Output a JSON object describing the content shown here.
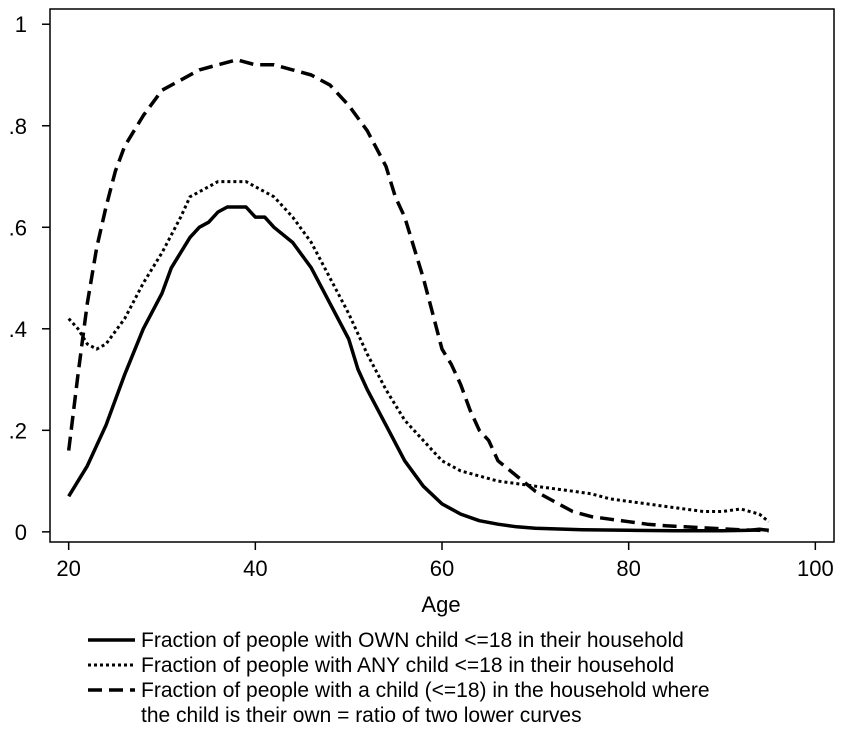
{
  "chart_data": {
    "type": "line",
    "title": "",
    "xlabel": "Age",
    "ylabel": "",
    "xlim": [
      18,
      102
    ],
    "ylim": [
      -0.02,
      1.03
    ],
    "x_ticks": [
      20,
      40,
      60,
      80,
      100
    ],
    "x_tick_labels": [
      "20",
      "40",
      "60",
      "80",
      "100"
    ],
    "y_ticks": [
      0,
      0.2,
      0.4,
      0.6,
      0.8,
      1
    ],
    "y_tick_labels": [
      "0",
      ".2",
      ".4",
      ".6",
      ".8",
      "1"
    ],
    "grid": false,
    "legend_position": "bottom",
    "series": [
      {
        "name": "Fraction of people with OWN child <=18 in their household",
        "style": "solid",
        "points": [
          [
            20,
            0.07
          ],
          [
            22,
            0.13
          ],
          [
            24,
            0.21
          ],
          [
            26,
            0.31
          ],
          [
            28,
            0.4
          ],
          [
            30,
            0.47
          ],
          [
            31,
            0.52
          ],
          [
            33,
            0.58
          ],
          [
            34,
            0.6
          ],
          [
            35,
            0.61
          ],
          [
            36,
            0.63
          ],
          [
            37,
            0.64
          ],
          [
            38,
            0.64
          ],
          [
            39,
            0.64
          ],
          [
            40,
            0.62
          ],
          [
            41,
            0.62
          ],
          [
            42,
            0.6
          ],
          [
            44,
            0.57
          ],
          [
            46,
            0.52
          ],
          [
            48,
            0.45
          ],
          [
            50,
            0.38
          ],
          [
            51,
            0.32
          ],
          [
            52,
            0.28
          ],
          [
            54,
            0.21
          ],
          [
            56,
            0.14
          ],
          [
            58,
            0.09
          ],
          [
            60,
            0.055
          ],
          [
            62,
            0.035
          ],
          [
            64,
            0.022
          ],
          [
            66,
            0.015
          ],
          [
            68,
            0.01
          ],
          [
            70,
            0.007
          ],
          [
            75,
            0.004
          ],
          [
            80,
            0.003
          ],
          [
            85,
            0.002
          ],
          [
            90,
            0.002
          ],
          [
            93,
            0.003
          ],
          [
            94,
            0.005
          ],
          [
            95,
            0.003
          ]
        ]
      },
      {
        "name": "Fraction of people with ANY child <=18 in their household",
        "style": "dotted",
        "points": [
          [
            20,
            0.42
          ],
          [
            21,
            0.4
          ],
          [
            22,
            0.37
          ],
          [
            23,
            0.36
          ],
          [
            24,
            0.37
          ],
          [
            26,
            0.42
          ],
          [
            28,
            0.49
          ],
          [
            30,
            0.55
          ],
          [
            32,
            0.62
          ],
          [
            33,
            0.66
          ],
          [
            35,
            0.68
          ],
          [
            36,
            0.69
          ],
          [
            38,
            0.69
          ],
          [
            39,
            0.69
          ],
          [
            40,
            0.68
          ],
          [
            42,
            0.66
          ],
          [
            44,
            0.62
          ],
          [
            46,
            0.57
          ],
          [
            48,
            0.5
          ],
          [
            50,
            0.43
          ],
          [
            52,
            0.35
          ],
          [
            54,
            0.28
          ],
          [
            56,
            0.22
          ],
          [
            58,
            0.18
          ],
          [
            60,
            0.14
          ],
          [
            62,
            0.12
          ],
          [
            64,
            0.11
          ],
          [
            66,
            0.1
          ],
          [
            68,
            0.095
          ],
          [
            70,
            0.09
          ],
          [
            72,
            0.085
          ],
          [
            74,
            0.08
          ],
          [
            76,
            0.075
          ],
          [
            78,
            0.065
          ],
          [
            80,
            0.06
          ],
          [
            82,
            0.055
          ],
          [
            84,
            0.05
          ],
          [
            86,
            0.045
          ],
          [
            88,
            0.04
          ],
          [
            90,
            0.04
          ],
          [
            92,
            0.045
          ],
          [
            94,
            0.035
          ],
          [
            95,
            0.02
          ]
        ]
      },
      {
        "name": "Fraction of people with a child (<=18) in the household where the child is their own = ratio of two lower curves",
        "name_lines": [
          "Fraction of people with a child (<=18) in the household where",
          "the child is their own = ratio of two lower curves"
        ],
        "style": "dashed",
        "points": [
          [
            20,
            0.16
          ],
          [
            21,
            0.31
          ],
          [
            22,
            0.45
          ],
          [
            23,
            0.56
          ],
          [
            24,
            0.64
          ],
          [
            25,
            0.71
          ],
          [
            26,
            0.76
          ],
          [
            28,
            0.82
          ],
          [
            30,
            0.87
          ],
          [
            32,
            0.89
          ],
          [
            34,
            0.91
          ],
          [
            36,
            0.92
          ],
          [
            38,
            0.93
          ],
          [
            40,
            0.92
          ],
          [
            42,
            0.92
          ],
          [
            44,
            0.91
          ],
          [
            46,
            0.9
          ],
          [
            48,
            0.88
          ],
          [
            50,
            0.84
          ],
          [
            52,
            0.79
          ],
          [
            54,
            0.72
          ],
          [
            55,
            0.66
          ],
          [
            56,
            0.62
          ],
          [
            57,
            0.56
          ],
          [
            58,
            0.5
          ],
          [
            59,
            0.43
          ],
          [
            60,
            0.36
          ],
          [
            61,
            0.33
          ],
          [
            62,
            0.29
          ],
          [
            63,
            0.24
          ],
          [
            64,
            0.2
          ],
          [
            65,
            0.18
          ],
          [
            66,
            0.14
          ],
          [
            68,
            0.11
          ],
          [
            70,
            0.08
          ],
          [
            72,
            0.06
          ],
          [
            74,
            0.04
          ],
          [
            76,
            0.03
          ],
          [
            78,
            0.025
          ],
          [
            80,
            0.02
          ],
          [
            82,
            0.015
          ],
          [
            84,
            0.012
          ],
          [
            86,
            0.01
          ],
          [
            88,
            0.008
          ],
          [
            90,
            0.006
          ],
          [
            92,
            0.004
          ],
          [
            94,
            0.003
          ],
          [
            95,
            0.002
          ]
        ]
      }
    ]
  }
}
